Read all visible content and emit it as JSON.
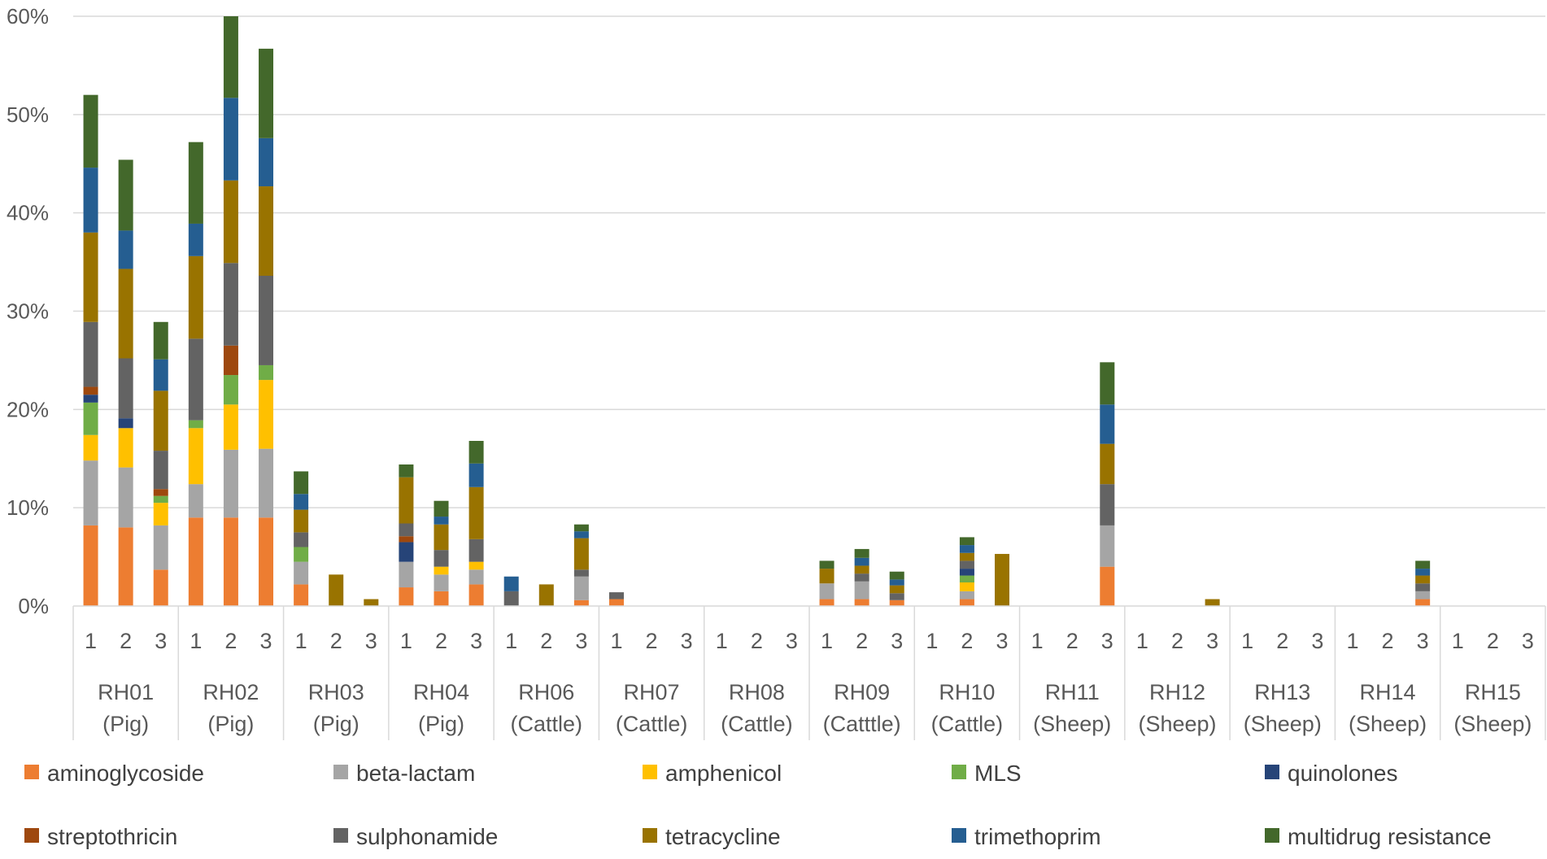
{
  "chart_data": {
    "type": "bar",
    "stacked": true,
    "title": "",
    "xlabel": "",
    "ylabel": "",
    "ylim": [
      0,
      60
    ],
    "y_ticks": [
      0,
      10,
      20,
      30,
      40,
      50,
      60
    ],
    "y_tick_suffix": "%",
    "grid": true,
    "legend_position": "bottom",
    "groups": [
      {
        "line1": "RH01",
        "line2": "(Pig)"
      },
      {
        "line1": "RH02",
        "line2": "(Pig)"
      },
      {
        "line1": "RH03",
        "line2": "(Pig)"
      },
      {
        "line1": "RH04",
        "line2": "(Pig)"
      },
      {
        "line1": "RH06",
        "line2": "(Cattle)"
      },
      {
        "line1": "RH07",
        "line2": "(Cattle)"
      },
      {
        "line1": "RH08",
        "line2": "(Cattle)"
      },
      {
        "line1": "RH09",
        "line2": "(Catttle)"
      },
      {
        "line1": "RH10",
        "line2": "(Cattle)"
      },
      {
        "line1": "RH11",
        "line2": "(Sheep)"
      },
      {
        "line1": "RH12",
        "line2": "(Sheep)"
      },
      {
        "line1": "RH13",
        "line2": "(Sheep)"
      },
      {
        "line1": "RH14",
        "line2": "(Sheep)"
      },
      {
        "line1": "RH15",
        "line2": "(Sheep)"
      }
    ],
    "replicates": [
      "1",
      "2",
      "3"
    ],
    "series": [
      {
        "name": "aminoglycoside",
        "color": "#ED7D31",
        "values": [
          8.2,
          8.0,
          3.7,
          9.0,
          9.0,
          9.0,
          2.2,
          0,
          0,
          1.9,
          1.5,
          2.2,
          0,
          0,
          0.6,
          0.7,
          0,
          0,
          0,
          0,
          0,
          0.7,
          0.7,
          0.6,
          0,
          0.7,
          0,
          0,
          0,
          4.0,
          0,
          0,
          0,
          0,
          0,
          0,
          0,
          0,
          0.7,
          0,
          0,
          0
        ]
      },
      {
        "name": "beta-lactam",
        "color": "#A5A5A5",
        "values": [
          6.6,
          6.1,
          4.5,
          3.4,
          6.9,
          7.0,
          2.3,
          0,
          0,
          2.6,
          1.7,
          1.5,
          0,
          0,
          2.4,
          0,
          0,
          0,
          0,
          0,
          0,
          1.6,
          1.8,
          0,
          0,
          0.8,
          0,
          0,
          0,
          4.2,
          0,
          0,
          0,
          0,
          0,
          0,
          0,
          0,
          0.8,
          0,
          0,
          0
        ]
      },
      {
        "name": "amphenicol",
        "color": "#FFC000",
        "values": [
          2.6,
          4.0,
          2.3,
          5.7,
          4.6,
          7.0,
          0,
          0,
          0,
          0,
          0.8,
          0.8,
          0,
          0,
          0,
          0,
          0,
          0,
          0,
          0,
          0,
          0,
          0,
          0,
          0,
          0.9,
          0,
          0,
          0,
          0,
          0,
          0,
          0,
          0,
          0,
          0,
          0,
          0,
          0,
          0,
          0,
          0
        ]
      },
      {
        "name": "MLS",
        "color": "#70AD47",
        "values": [
          3.3,
          0,
          0.7,
          0.8,
          3.0,
          1.5,
          1.5,
          0,
          0,
          0,
          0,
          0,
          0,
          0,
          0,
          0,
          0,
          0,
          0,
          0,
          0,
          0,
          0,
          0,
          0,
          0.7,
          0,
          0,
          0,
          0,
          0,
          0,
          0,
          0,
          0,
          0,
          0,
          0,
          0,
          0,
          0,
          0
        ]
      },
      {
        "name": "quinolones",
        "color": "#264478",
        "values": [
          0.8,
          1.0,
          0,
          0,
          0,
          0,
          0,
          0,
          0,
          2.0,
          0,
          0,
          0,
          0,
          0,
          0,
          0,
          0,
          0,
          0,
          0,
          0,
          0,
          0,
          0,
          0.7,
          0,
          0,
          0,
          0,
          0,
          0,
          0,
          0,
          0,
          0,
          0,
          0,
          0,
          0,
          0,
          0
        ]
      },
      {
        "name": "streptothricin",
        "color": "#9E480E",
        "values": [
          0.8,
          0,
          0.7,
          0,
          3.0,
          0,
          0,
          0,
          0,
          0.6,
          0,
          0,
          0,
          0,
          0,
          0,
          0,
          0,
          0,
          0,
          0,
          0,
          0,
          0,
          0,
          0,
          0,
          0,
          0,
          0,
          0,
          0,
          0,
          0,
          0,
          0,
          0,
          0,
          0,
          0,
          0,
          0
        ]
      },
      {
        "name": "sulphonamide",
        "color": "#636363",
        "values": [
          6.6,
          6.1,
          3.9,
          8.3,
          8.4,
          9.1,
          1.5,
          0,
          0,
          1.3,
          1.7,
          2.3,
          1.5,
          0,
          0.7,
          0.7,
          0,
          0,
          0,
          0,
          0,
          0,
          0.8,
          0.7,
          0,
          0.8,
          0,
          0,
          0,
          4.2,
          0,
          0,
          0,
          0,
          0,
          0,
          0,
          0,
          0.8,
          0,
          0,
          0
        ]
      },
      {
        "name": "tetracycline",
        "color": "#997300",
        "values": [
          9.1,
          9.1,
          6.1,
          8.4,
          8.4,
          9.1,
          2.3,
          3.2,
          0.7,
          4.7,
          2.6,
          5.3,
          0,
          2.2,
          3.2,
          0,
          0,
          0,
          0,
          0,
          0,
          1.5,
          0.8,
          0.8,
          0,
          0.8,
          5.3,
          0,
          0,
          4.1,
          0,
          0,
          0.7,
          0,
          0,
          0,
          0,
          0,
          0.8,
          0,
          0,
          0
        ]
      },
      {
        "name": "trimethoprim",
        "color": "#255E91",
        "values": [
          6.6,
          3.9,
          3.2,
          3.3,
          8.4,
          4.9,
          1.6,
          0,
          0,
          0,
          0.8,
          2.4,
          1.5,
          0,
          0.7,
          0,
          0,
          0,
          0,
          0,
          0,
          0,
          0.8,
          0.6,
          0,
          0.8,
          0,
          0,
          0,
          4.0,
          0,
          0,
          0,
          0,
          0,
          0,
          0,
          0,
          0.7,
          0,
          0,
          0
        ]
      },
      {
        "name": "multidrug resistance",
        "color": "#43682B",
        "values": [
          7.4,
          7.2,
          3.8,
          8.3,
          8.3,
          9.1,
          2.3,
          0,
          0,
          1.3,
          1.6,
          2.3,
          0,
          0,
          0.7,
          0,
          0,
          0,
          0,
          0,
          0,
          0.8,
          0.9,
          0.8,
          0,
          0.8,
          0,
          0,
          0,
          4.3,
          0,
          0,
          0,
          0,
          0,
          0,
          0,
          0,
          0.8,
          0,
          0,
          0
        ]
      }
    ]
  }
}
